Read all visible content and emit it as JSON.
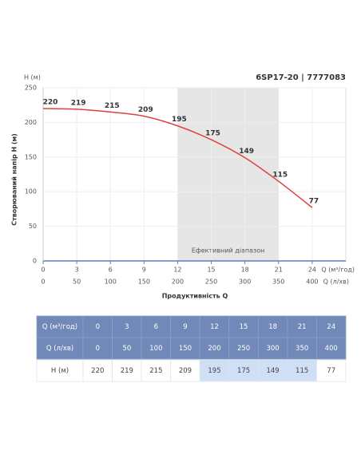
{
  "chart_data": {
    "type": "line",
    "title": "6SP17-20 | 7777083",
    "y_unit_label": "H (м)",
    "y_axis_label": "Створюваний напір H (м)",
    "x_axis_label": "Продуктивність Q",
    "x_unit_label": "Q (м³/год)",
    "x2_unit_label": "Q (л/хв)",
    "x": [
      0,
      3,
      6,
      9,
      12,
      15,
      18,
      21,
      24
    ],
    "series": [
      {
        "name": "H",
        "color": "#e0413c",
        "values": [
          220,
          219,
          215,
          209,
          195,
          175,
          149,
          115,
          77
        ]
      }
    ],
    "xlim": [
      0,
      27
    ],
    "xticks": [
      0,
      3,
      6,
      9,
      12,
      15,
      18,
      21,
      24
    ],
    "x2lim": [
      0,
      450
    ],
    "x2ticks": [
      0,
      50,
      100,
      150,
      200,
      250,
      300,
      350,
      400
    ],
    "ylim": [
      0,
      250
    ],
    "yticks": [
      0,
      50,
      100,
      150,
      200,
      250
    ],
    "grid": true,
    "band": {
      "from": 12,
      "to": 21,
      "label": "Ефективний діапазон",
      "color": "#e6e6e6"
    }
  },
  "table": {
    "rows": [
      [
        "Q (м³/год)",
        0,
        3,
        6,
        9,
        12,
        15,
        18,
        21,
        24
      ],
      [
        "Q (л/хв)",
        0,
        50,
        100,
        150,
        200,
        250,
        300,
        350,
        400
      ],
      [
        "H (м)",
        220,
        219,
        215,
        209,
        195,
        175,
        149,
        115,
        77
      ]
    ]
  }
}
